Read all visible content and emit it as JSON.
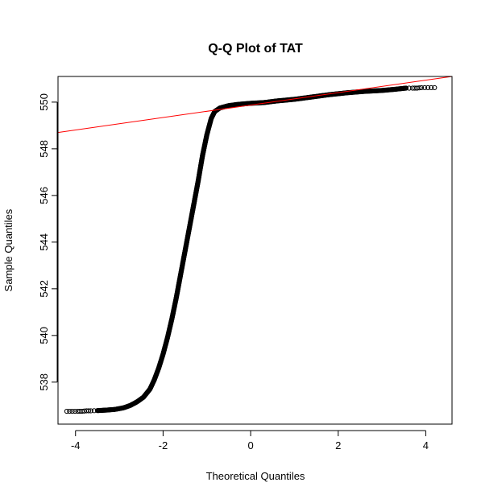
{
  "chart_data": {
    "type": "scatter",
    "title": "Q-Q Plot of TAT",
    "xlabel": "Theoretical Quantiles",
    "ylabel": "Sample Quantiles",
    "xlim": [
      -4.4,
      4.6
    ],
    "ylim": [
      536.2,
      551.1
    ],
    "x_ticks": [
      -4,
      -2,
      0,
      2,
      4
    ],
    "x_tick_labels": [
      "-4",
      "-2",
      "0",
      "2",
      "4"
    ],
    "y_ticks": [
      538,
      540,
      542,
      544,
      546,
      548,
      550
    ],
    "y_tick_labels": [
      "538",
      "540",
      "542",
      "544",
      "546",
      "548",
      "550"
    ],
    "grid": false,
    "legend": "none",
    "colors": {
      "points": "#000000",
      "reference_line": "#ff0000"
    },
    "reference_line": {
      "x": [
        -4.4,
        4.6
      ],
      "y": [
        548.7,
        551.1
      ]
    },
    "series": [
      {
        "values": [
          [
            -4.2,
            536.75
          ],
          [
            -3.95,
            536.75
          ],
          [
            -3.85,
            536.75
          ],
          [
            -3.75,
            536.77
          ],
          [
            -3.65,
            536.77
          ],
          [
            -3.5,
            536.78
          ],
          [
            -3.3,
            536.8
          ],
          [
            -3.1,
            536.83
          ],
          [
            -2.9,
            536.9
          ],
          [
            -2.75,
            537.0
          ],
          [
            -2.6,
            537.15
          ],
          [
            -2.45,
            537.35
          ],
          [
            -2.3,
            537.7
          ],
          [
            -2.2,
            538.1
          ],
          [
            -2.1,
            538.6
          ],
          [
            -2.0,
            539.2
          ],
          [
            -1.9,
            539.9
          ],
          [
            -1.8,
            540.7
          ],
          [
            -1.7,
            541.6
          ],
          [
            -1.6,
            542.6
          ],
          [
            -1.5,
            543.6
          ],
          [
            -1.4,
            544.6
          ],
          [
            -1.3,
            545.6
          ],
          [
            -1.2,
            546.6
          ],
          [
            -1.1,
            547.7
          ],
          [
            -1.0,
            548.6
          ],
          [
            -0.9,
            549.3
          ],
          [
            -0.82,
            549.6
          ],
          [
            -0.7,
            549.75
          ],
          [
            -0.5,
            549.85
          ],
          [
            -0.3,
            549.9
          ],
          [
            0.0,
            549.95
          ],
          [
            0.3,
            549.98
          ],
          [
            0.6,
            550.05
          ],
          [
            1.0,
            550.12
          ],
          [
            1.4,
            550.22
          ],
          [
            1.8,
            550.32
          ],
          [
            2.2,
            550.4
          ],
          [
            2.6,
            550.46
          ],
          [
            3.0,
            550.5
          ],
          [
            3.3,
            550.55
          ],
          [
            3.55,
            550.6
          ],
          [
            3.62,
            550.6
          ],
          [
            3.7,
            550.6
          ],
          [
            3.8,
            550.6
          ],
          [
            3.9,
            550.62
          ],
          [
            4.2,
            550.62
          ]
        ]
      }
    ]
  }
}
